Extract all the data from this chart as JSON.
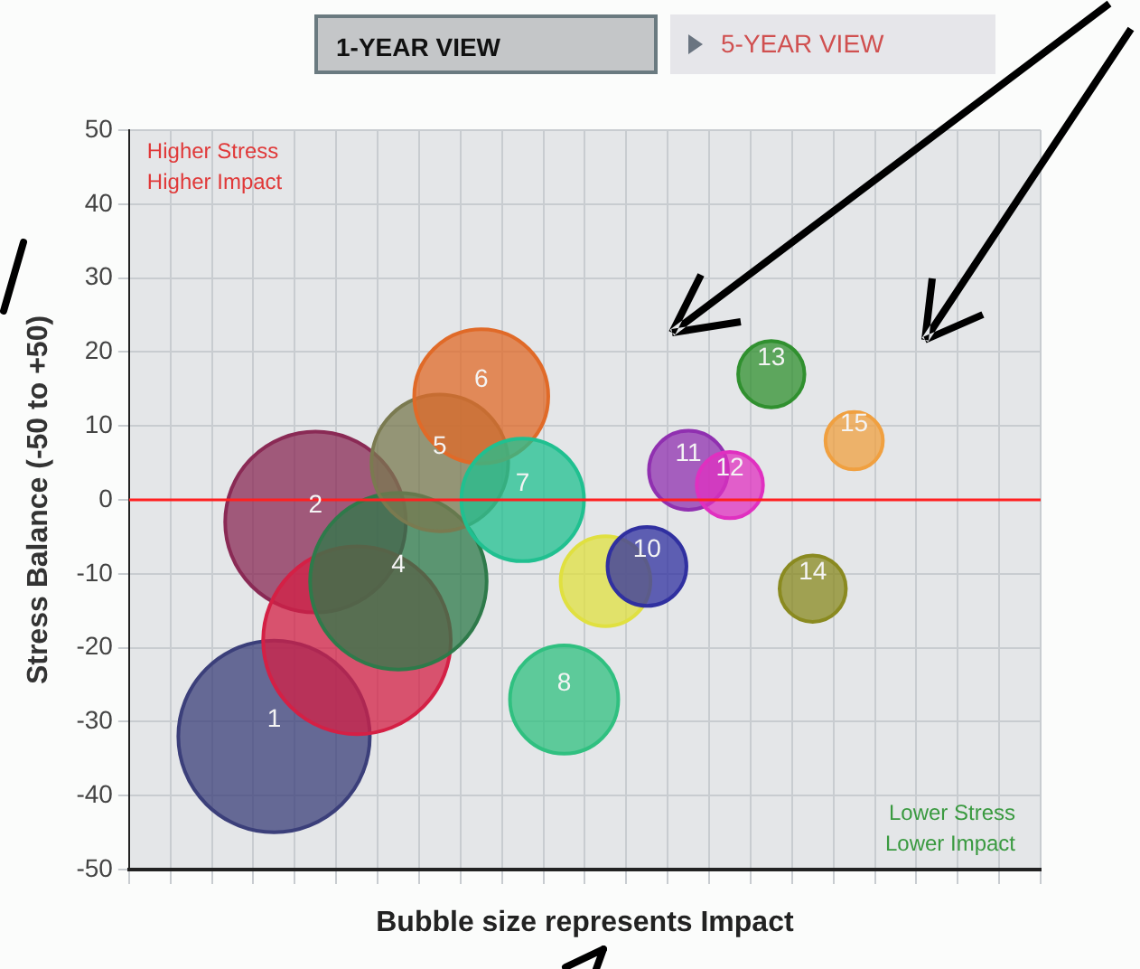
{
  "chart_data": {
    "type": "bubble",
    "xlabel": "Bubble size represents Impact",
    "ylabel": "Stress Balance (-50 to +50)",
    "categories": [
      null,
      null,
      null,
      null,
      null,
      null,
      null,
      null,
      null,
      null,
      null,
      null,
      null,
      null,
      null,
      null,
      null,
      null,
      null,
      null,
      null,
      null
    ],
    "series": [
      {
        "name": "1",
        "color": "#3b3f7a",
        "values": [
          null,
          null,
          null,
          -32,
          null,
          null,
          null,
          null,
          null,
          null,
          null,
          null,
          null,
          null,
          null,
          null,
          null,
          null,
          null,
          null,
          null,
          null
        ],
        "sizes": [
          null,
          null,
          null,
          1,
          null,
          null,
          null,
          null,
          null,
          null,
          null,
          null,
          null,
          null,
          null,
          null,
          null,
          null,
          null,
          null,
          null,
          null
        ]
      },
      {
        "name": "2",
        "color": "#8a2a55",
        "values": [
          null,
          null,
          null,
          null,
          -3,
          null,
          null,
          null,
          null,
          null,
          null,
          null,
          null,
          null,
          null,
          null,
          null,
          null,
          null,
          null,
          null,
          null
        ],
        "sizes": [
          null,
          null,
          null,
          null,
          0.89,
          null,
          null,
          null,
          null,
          null,
          null,
          null,
          null,
          null,
          null,
          null,
          null,
          null,
          null,
          null,
          null,
          null
        ]
      },
      {
        "color": "#d42045",
        "values": [
          null,
          null,
          null,
          null,
          null,
          -19,
          null,
          null,
          null,
          null,
          null,
          null,
          null,
          null,
          null,
          null,
          null,
          null,
          null,
          null,
          null,
          null
        ],
        "sizes": [
          null,
          null,
          null,
          null,
          null,
          0.96,
          null,
          null,
          null,
          null,
          null,
          null,
          null,
          null,
          null,
          null,
          null,
          null,
          null,
          null,
          null,
          null
        ]
      },
      {
        "name": "4",
        "color": "#2e7a4a",
        "values": [
          null,
          null,
          null,
          null,
          null,
          null,
          -11,
          null,
          null,
          null,
          null,
          null,
          null,
          null,
          null,
          null,
          null,
          null,
          null,
          null,
          null,
          null
        ],
        "sizes": [
          null,
          null,
          null,
          null,
          null,
          null,
          0.85,
          null,
          null,
          null,
          null,
          null,
          null,
          null,
          null,
          null,
          null,
          null,
          null,
          null,
          null,
          null
        ]
      },
      {
        "name": "5",
        "color": "#7a7a50",
        "values": [
          null,
          null,
          null,
          null,
          null,
          null,
          null,
          5,
          null,
          null,
          null,
          null,
          null,
          null,
          null,
          null,
          null,
          null,
          null,
          null,
          null,
          null
        ],
        "sizes": [
          null,
          null,
          null,
          null,
          null,
          null,
          null,
          0.51,
          null,
          null,
          null,
          null,
          null,
          null,
          null,
          null,
          null,
          null,
          null,
          null,
          null,
          null
        ]
      },
      {
        "name": "6",
        "color": "#e06a28",
        "values": [
          null,
          null,
          null,
          null,
          null,
          null,
          null,
          null,
          14,
          null,
          null,
          null,
          null,
          null,
          null,
          null,
          null,
          null,
          null,
          null,
          null,
          null
        ],
        "sizes": [
          null,
          null,
          null,
          null,
          null,
          null,
          null,
          null,
          0.49,
          null,
          null,
          null,
          null,
          null,
          null,
          null,
          null,
          null,
          null,
          null,
          null,
          null
        ]
      },
      {
        "name": "7",
        "color": "#20c090",
        "values": [
          null,
          null,
          null,
          null,
          null,
          null,
          null,
          null,
          null,
          0,
          null,
          null,
          null,
          null,
          null,
          null,
          null,
          null,
          null,
          null,
          null,
          null
        ],
        "sizes": [
          null,
          null,
          null,
          null,
          null,
          null,
          null,
          null,
          null,
          0.41,
          null,
          null,
          null,
          null,
          null,
          null,
          null,
          null,
          null,
          null,
          null,
          null
        ]
      },
      {
        "name": "8",
        "color": "#30c080",
        "values": [
          null,
          null,
          null,
          null,
          null,
          null,
          null,
          null,
          null,
          null,
          -27,
          null,
          null,
          null,
          null,
          null,
          null,
          null,
          null,
          null,
          null,
          null
        ],
        "sizes": [
          null,
          null,
          null,
          null,
          null,
          null,
          null,
          null,
          null,
          null,
          0.32,
          null,
          null,
          null,
          null,
          null,
          null,
          null,
          null,
          null,
          null,
          null
        ]
      },
      {
        "color": "#e0e040",
        "values": [
          null,
          null,
          null,
          null,
          null,
          null,
          null,
          null,
          null,
          null,
          null,
          -11,
          null,
          null,
          null,
          null,
          null,
          null,
          null,
          null,
          null,
          null
        ],
        "sizes": [
          null,
          null,
          null,
          null,
          null,
          null,
          null,
          null,
          null,
          null,
          null,
          0.22,
          null,
          null,
          null,
          null,
          null,
          null,
          null,
          null,
          null,
          null
        ]
      },
      {
        "name": "10",
        "color": "#3030a0",
        "values": [
          null,
          null,
          null,
          null,
          null,
          null,
          null,
          null,
          null,
          null,
          null,
          null,
          -9,
          null,
          null,
          null,
          null,
          null,
          null,
          null,
          null,
          null
        ],
        "sizes": [
          null,
          null,
          null,
          null,
          null,
          null,
          null,
          null,
          null,
          null,
          null,
          null,
          0.17,
          null,
          null,
          null,
          null,
          null,
          null,
          null,
          null,
          null
        ]
      },
      {
        "name": "11",
        "color": "#9030b0",
        "values": [
          null,
          null,
          null,
          null,
          null,
          null,
          null,
          null,
          null,
          null,
          null,
          null,
          null,
          4,
          null,
          null,
          null,
          null,
          null,
          null,
          null,
          null
        ],
        "sizes": [
          null,
          null,
          null,
          null,
          null,
          null,
          null,
          null,
          null,
          null,
          null,
          null,
          null,
          0.17,
          null,
          null,
          null,
          null,
          null,
          null,
          null,
          null
        ]
      },
      {
        "name": "12",
        "color": "#e030c0",
        "values": [
          null,
          null,
          null,
          null,
          null,
          null,
          null,
          null,
          null,
          null,
          null,
          null,
          null,
          null,
          2,
          null,
          null,
          null,
          null,
          null,
          null,
          null
        ],
        "sizes": [
          null,
          null,
          null,
          null,
          null,
          null,
          null,
          null,
          null,
          null,
          null,
          null,
          null,
          null,
          0.12,
          null,
          null,
          null,
          null,
          null,
          null,
          null
        ]
      },
      {
        "name": "13",
        "color": "#30902f",
        "values": [
          null,
          null,
          null,
          null,
          null,
          null,
          null,
          null,
          null,
          null,
          null,
          null,
          null,
          null,
          null,
          17,
          null,
          null,
          null,
          null,
          null,
          null
        ],
        "sizes": [
          null,
          null,
          null,
          null,
          null,
          null,
          null,
          null,
          null,
          null,
          null,
          null,
          null,
          null,
          null,
          0.12,
          null,
          null,
          null,
          null,
          null,
          null
        ]
      },
      {
        "name": "14",
        "color": "#8a8a20",
        "values": [
          null,
          null,
          null,
          null,
          null,
          null,
          null,
          null,
          null,
          null,
          null,
          null,
          null,
          null,
          null,
          null,
          -12,
          null,
          null,
          null,
          null,
          null
        ],
        "sizes": [
          null,
          null,
          null,
          null,
          null,
          null,
          null,
          null,
          null,
          null,
          null,
          null,
          null,
          null,
          null,
          null,
          0.12,
          null,
          null,
          null,
          null,
          null
        ]
      },
      {
        "name": "15",
        "color": "#f0a040",
        "values": [
          null,
          null,
          null,
          null,
          null,
          null,
          null,
          null,
          null,
          null,
          null,
          null,
          null,
          null,
          null,
          null,
          null,
          8,
          null,
          null,
          null,
          null
        ],
        "sizes": [
          null,
          null,
          null,
          null,
          null,
          null,
          null,
          null,
          null,
          null,
          null,
          null,
          null,
          null,
          null,
          null,
          null,
          0.09,
          null,
          null,
          null,
          null
        ]
      }
    ],
    "ylim": [
      -50,
      50
    ],
    "yticks": [
      -50,
      -40,
      -30,
      -20,
      -10,
      0,
      10,
      20,
      30,
      40,
      50
    ],
    "grid": true,
    "tick_labels": "y",
    "legend": false,
    "ref_lines": [
      {
        "axis": "y",
        "value": 0,
        "color": "#ff2020"
      }
    ],
    "annotations": [
      "Higher Stress\nHigher Impact",
      "Lower Stress\nLower Impact",
      "1-YEAR VIEW",
      "5-YEAR VIEW"
    ]
  }
}
